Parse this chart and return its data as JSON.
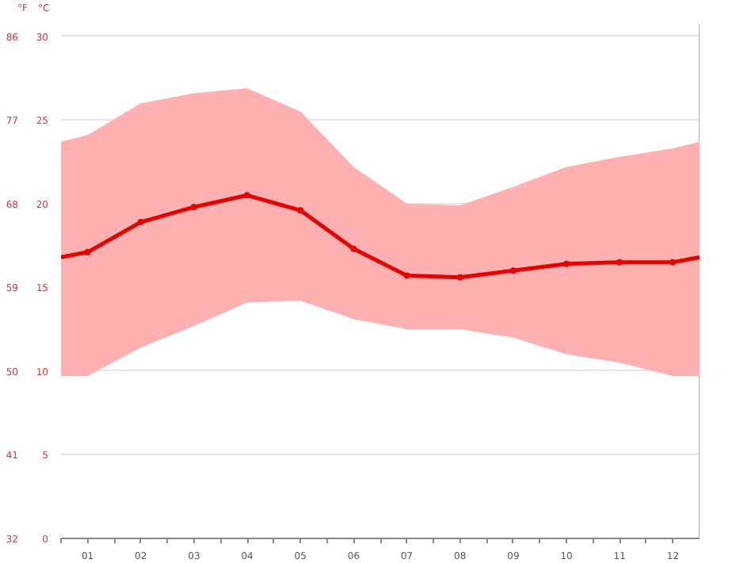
{
  "chart_data": {
    "type": "line",
    "ylabel": "°C",
    "y2label": "°F",
    "x": [
      0.5,
      1,
      2,
      3,
      4,
      5,
      6,
      7,
      8,
      9,
      10,
      11,
      12,
      12.5
    ],
    "series": [
      {
        "color": "#e60000",
        "values": [
          16.8,
          17.1,
          18.9,
          19.8,
          20.5,
          19.6,
          17.3,
          15.7,
          15.6,
          16.0,
          16.4,
          16.5,
          16.5,
          16.8
        ],
        "lower": [
          9.7,
          9.7,
          11.4,
          12.7,
          14.1,
          14.2,
          13.1,
          12.5,
          12.5,
          12.0,
          11.0,
          10.5,
          9.7,
          9.7
        ],
        "upper": [
          23.7,
          24.1,
          26.0,
          26.6,
          26.9,
          25.5,
          22.2,
          20.0,
          19.9,
          21.0,
          22.2,
          22.8,
          23.3,
          23.7
        ]
      }
    ],
    "xlim": [
      0.5,
      12.5
    ],
    "xticks": [
      {
        "value": 1,
        "label": "01"
      },
      {
        "value": 2,
        "label": "02"
      },
      {
        "value": 3,
        "label": "03"
      },
      {
        "value": 4,
        "label": "04"
      },
      {
        "value": 5,
        "label": "05"
      },
      {
        "value": 6,
        "label": "06"
      },
      {
        "value": 7,
        "label": "07"
      },
      {
        "value": 8,
        "label": "08"
      },
      {
        "value": 9,
        "label": "09"
      },
      {
        "value": 10,
        "label": "10"
      },
      {
        "value": 11,
        "label": "11"
      },
      {
        "value": 12,
        "label": "12"
      }
    ],
    "ylim": [
      0,
      30.7
    ],
    "yticks": [
      0,
      5,
      10,
      15,
      20,
      25,
      30
    ],
    "y2lim": [
      32,
      87.26
    ],
    "y2ticks": [
      32,
      41,
      50,
      59,
      68,
      77,
      86
    ],
    "grid": "y",
    "marker": "circle",
    "line_style": "solid"
  }
}
